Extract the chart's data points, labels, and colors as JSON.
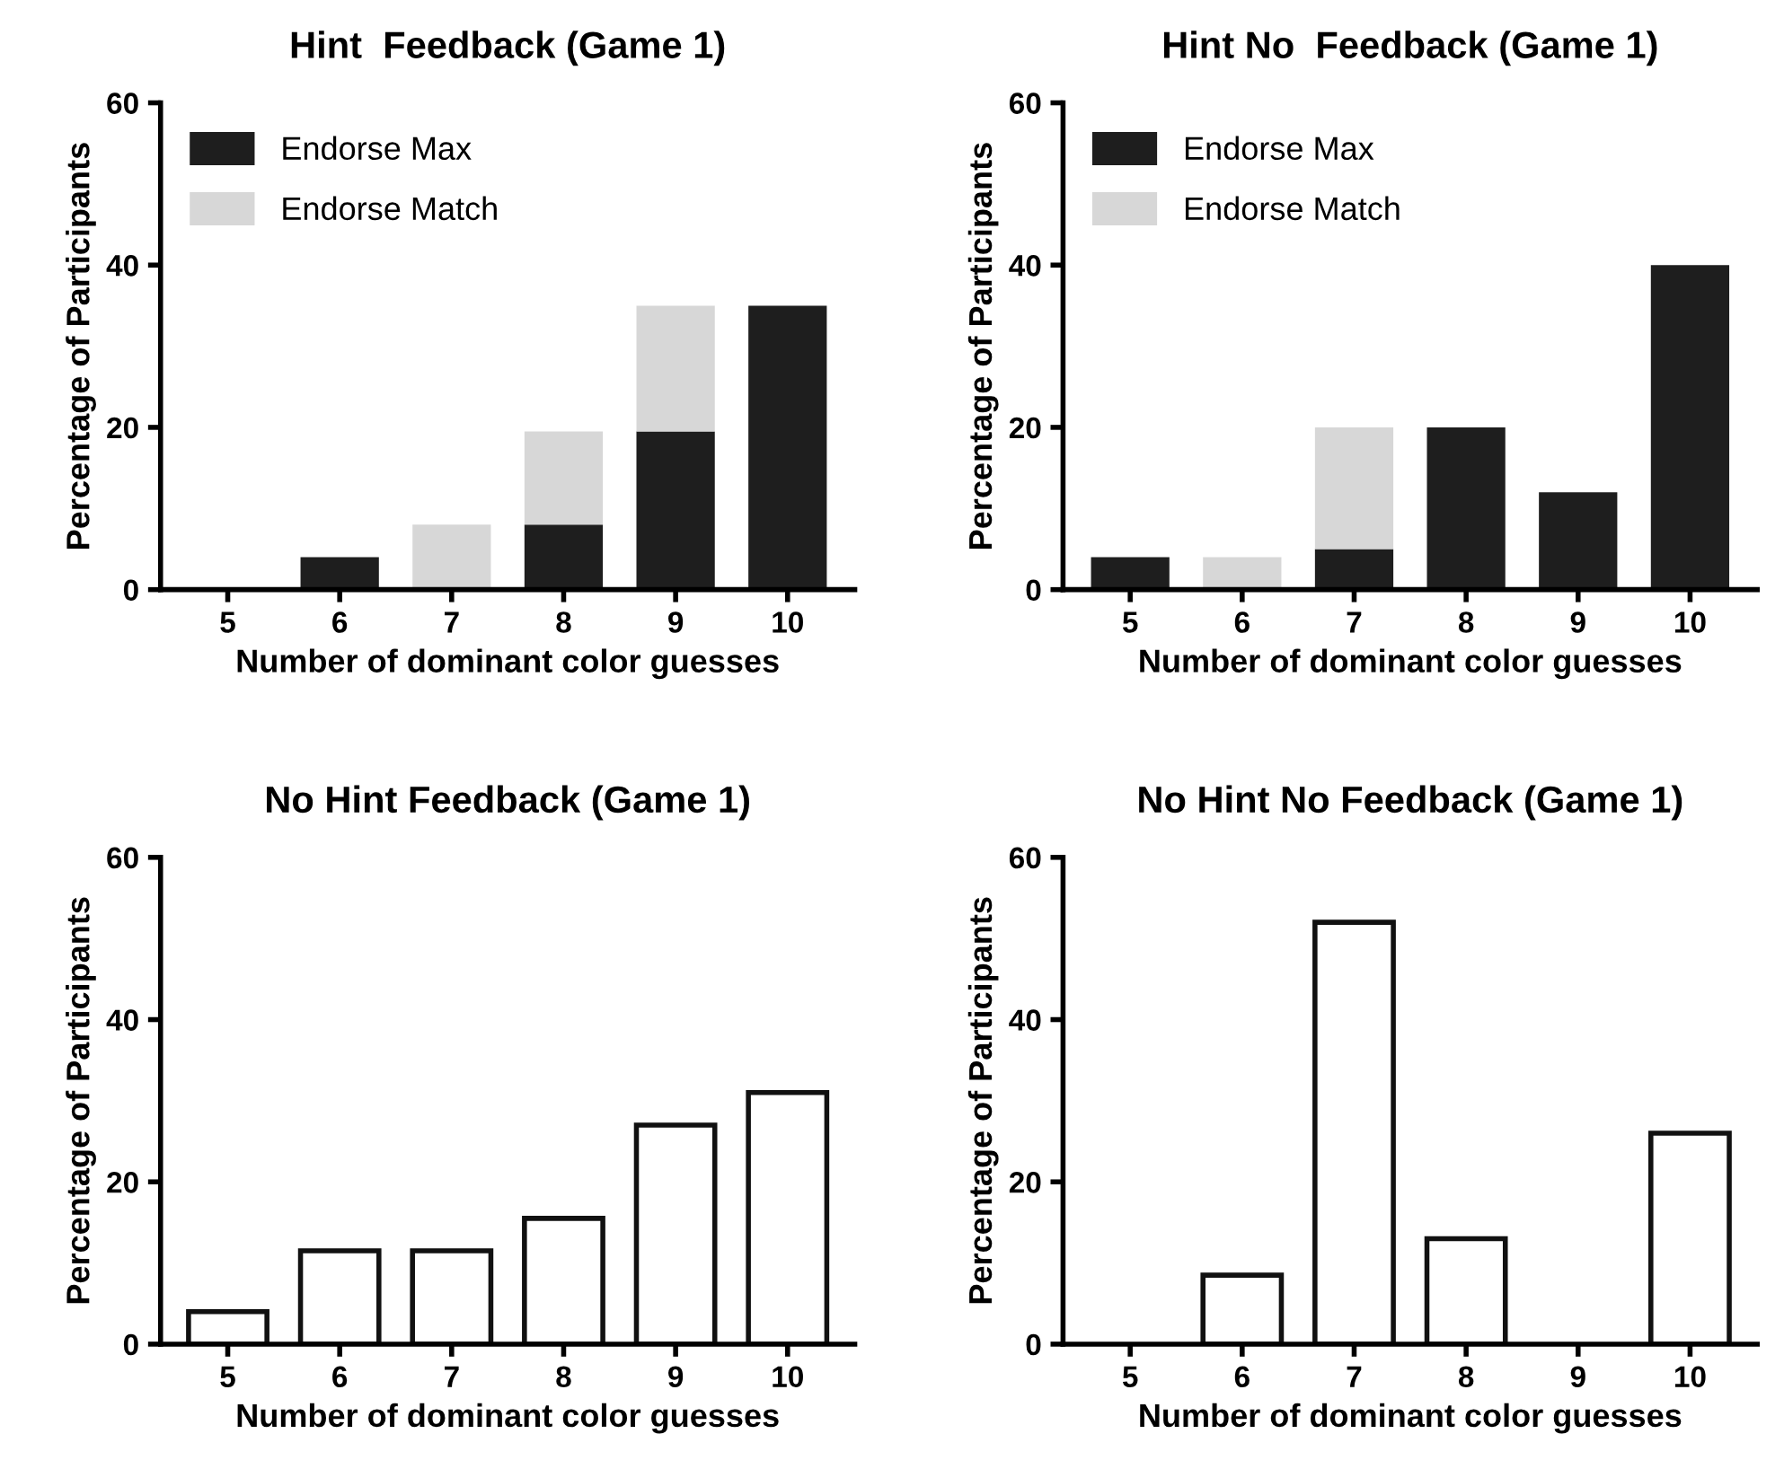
{
  "chart_data": [
    {
      "type": "bar",
      "title": "Hint  Feedback (Game 1)",
      "xlabel": "Number of dominant color guesses",
      "ylabel": "Percentage of Participants",
      "categories": [
        "5",
        "6",
        "7",
        "8",
        "9",
        "10"
      ],
      "stacked": true,
      "legend": "top left",
      "grid": false,
      "ylim": [
        0,
        60
      ],
      "yticks": [
        0,
        20,
        40,
        60
      ],
      "series": [
        {
          "name": "Endorse Max",
          "color": "#1e1e1e",
          "values": [
            0,
            4,
            0,
            8,
            19.5,
            35
          ]
        },
        {
          "name": "Endorse Match",
          "color": "#d7d7d7",
          "values": [
            0,
            0,
            8,
            11.5,
            15.5,
            0
          ]
        }
      ]
    },
    {
      "type": "bar",
      "title": "Hint No  Feedback (Game 1)",
      "xlabel": "Number of dominant color guesses",
      "ylabel": "Percentage of Participants",
      "categories": [
        "5",
        "6",
        "7",
        "8",
        "9",
        "10"
      ],
      "stacked": true,
      "legend": "top left",
      "grid": false,
      "ylim": [
        0,
        60
      ],
      "yticks": [
        0,
        20,
        40,
        60
      ],
      "series": [
        {
          "name": "Endorse Max",
          "color": "#1e1e1e",
          "values": [
            4,
            0,
            5,
            20,
            12,
            40
          ]
        },
        {
          "name": "Endorse Match",
          "color": "#d7d7d7",
          "values": [
            0,
            4,
            15,
            0,
            0,
            0
          ]
        }
      ]
    },
    {
      "type": "bar",
      "title": "No Hint Feedback (Game 1)",
      "xlabel": "Number of dominant color guesses",
      "ylabel": "Percentage of Participants",
      "categories": [
        "5",
        "6",
        "7",
        "8",
        "9",
        "10"
      ],
      "grid": false,
      "ylim": [
        0,
        60
      ],
      "yticks": [
        0,
        20,
        40,
        60
      ],
      "series": [
        {
          "color": "#ffffff",
          "values": [
            4,
            11.5,
            11.5,
            15.5,
            27,
            31
          ]
        }
      ]
    },
    {
      "type": "bar",
      "title": "No Hint No Feedback (Game 1)",
      "xlabel": "Number of dominant color guesses",
      "ylabel": "Percentage of Participants",
      "categories": [
        "5",
        "6",
        "7",
        "8",
        "9",
        "10"
      ],
      "grid": false,
      "ylim": [
        0,
        60
      ],
      "yticks": [
        0,
        20,
        40,
        60
      ],
      "series": [
        {
          "color": "#ffffff",
          "values": [
            0,
            8.5,
            52,
            13,
            0,
            26
          ]
        }
      ]
    }
  ]
}
